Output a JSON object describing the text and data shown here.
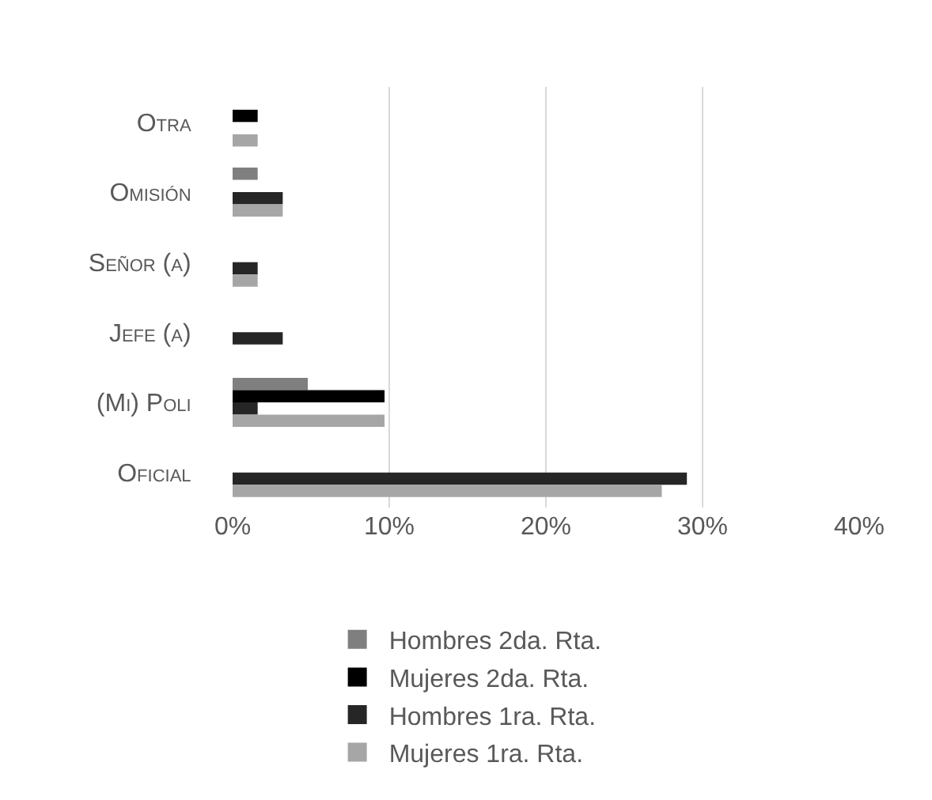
{
  "chart_data": {
    "type": "bar",
    "orientation": "horizontal",
    "categories": [
      "Otra",
      "Omisión",
      "Señor (a)",
      "Jefe (a)",
      "(Mi) Poli",
      "Oficial"
    ],
    "series": [
      {
        "name": "Hombres 2da. Rta.",
        "color": "#7f7f7f",
        "values": [
          null,
          1.6,
          null,
          null,
          4.8,
          null
        ]
      },
      {
        "name": "Mujeres 2da. Rta.",
        "color": "#000000",
        "values": [
          1.6,
          null,
          null,
          null,
          9.7,
          null
        ]
      },
      {
        "name": "Hombres 1ra. Rta.",
        "color": "#262626",
        "values": [
          null,
          3.2,
          1.6,
          3.2,
          1.6,
          29.0
        ]
      },
      {
        "name": "Mujeres 1ra. Rta.",
        "color": "#a6a6a6",
        "values": [
          1.6,
          3.2,
          1.6,
          null,
          9.7,
          27.4
        ]
      }
    ],
    "xlim": [
      0,
      40
    ],
    "xticks": [
      {
        "value": 0,
        "label": "0%"
      },
      {
        "value": 10,
        "label": "10%"
      },
      {
        "value": 20,
        "label": "20%"
      },
      {
        "value": 30,
        "label": "30%"
      },
      {
        "value": 40,
        "label": "40%"
      }
    ],
    "grid": "x",
    "legend": "bottom"
  }
}
